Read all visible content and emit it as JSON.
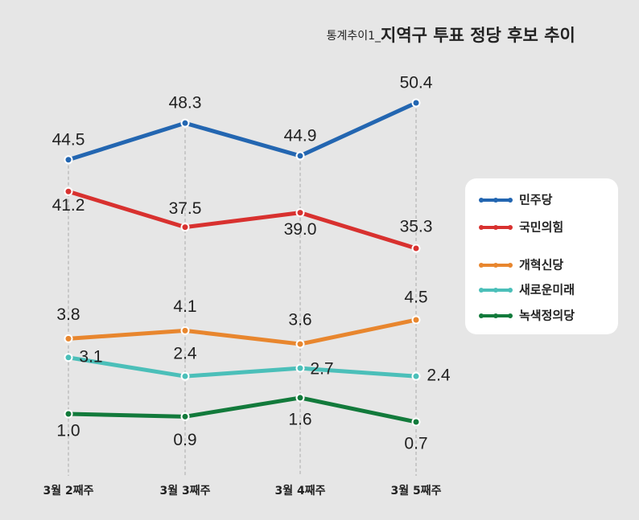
{
  "chart_data": {
    "type": "line",
    "subtitle": "통계추이1_",
    "title": "지역구 투표 정당 후보 추이",
    "categories": [
      "3월 2째주",
      "3월 3째주",
      "3월 4째주",
      "3월 5째주"
    ],
    "series": [
      {
        "name": "민주당",
        "color": "#2366b1",
        "values": [
          44.5,
          48.3,
          44.9,
          50.4
        ]
      },
      {
        "name": "국민의힘",
        "color": "#d8312f",
        "values": [
          41.2,
          37.5,
          39.0,
          35.3
        ],
        "value_labels": [
          "41.2",
          "37.5",
          "39.0",
          "35.3"
        ]
      },
      {
        "name": "개혁신당",
        "color": "#e8862e",
        "values": [
          3.8,
          4.1,
          3.6,
          4.5
        ]
      },
      {
        "name": "새로운미래",
        "color": "#4bbfb9",
        "values": [
          3.1,
          2.4,
          2.7,
          2.4
        ]
      },
      {
        "name": "녹색정의당",
        "color": "#127a3b",
        "values": [
          1.0,
          0.9,
          1.6,
          0.7
        ],
        "value_labels": [
          "1.0",
          "0.9",
          "1.6",
          "0.7"
        ]
      }
    ]
  }
}
